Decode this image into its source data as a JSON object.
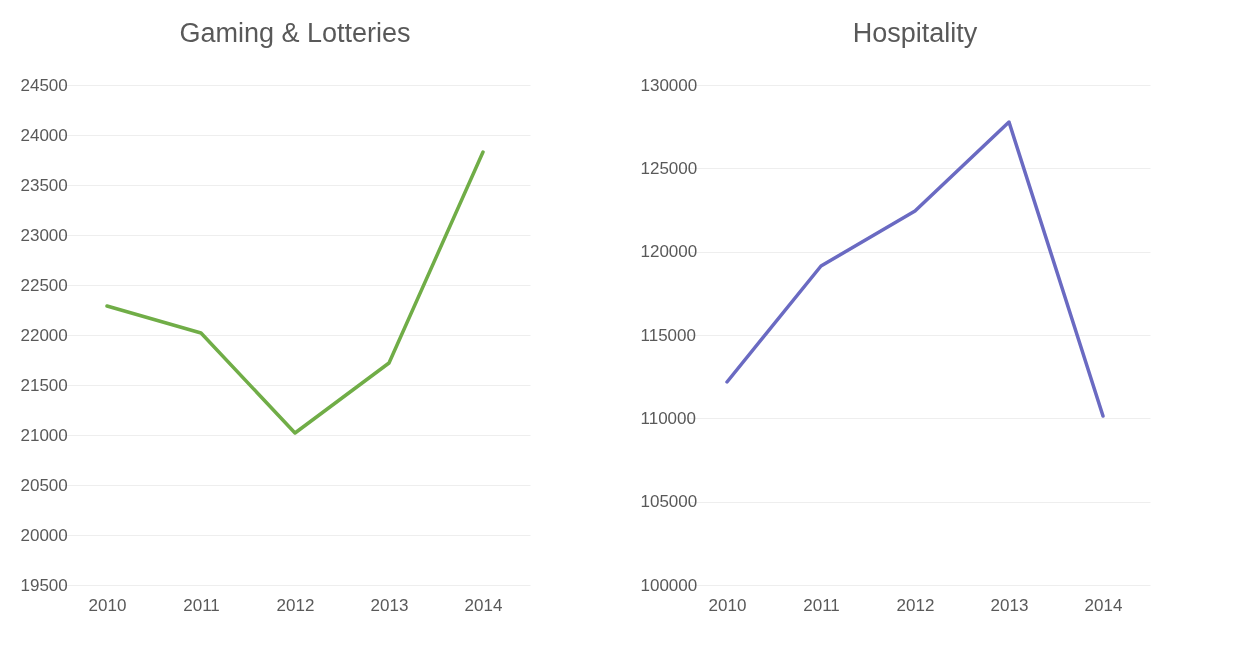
{
  "chart_data": [
    {
      "type": "line",
      "title": "Gaming & Lotteries",
      "categories": [
        "2010",
        "2011",
        "2012",
        "2013",
        "2014"
      ],
      "series": [
        {
          "color": "#70ad47",
          "values": [
            22290,
            22020,
            21020,
            21720,
            23830
          ]
        }
      ],
      "ylim": [
        19500,
        24500
      ],
      "yticks": [
        19500,
        20000,
        20500,
        21000,
        21500,
        22000,
        22500,
        23000,
        23500,
        24000,
        24500
      ],
      "grid": "y"
    },
    {
      "type": "line",
      "title": "Hospitality",
      "categories": [
        "2010",
        "2011",
        "2012",
        "2013",
        "2014"
      ],
      "series": [
        {
          "color": "#6a6ac2",
          "values": [
            112180,
            119140,
            122440,
            127780,
            110140
          ]
        }
      ],
      "ylim": [
        100000,
        130000
      ],
      "yticks": [
        100000,
        105000,
        110000,
        115000,
        120000,
        125000,
        130000
      ],
      "grid": "y"
    }
  ]
}
